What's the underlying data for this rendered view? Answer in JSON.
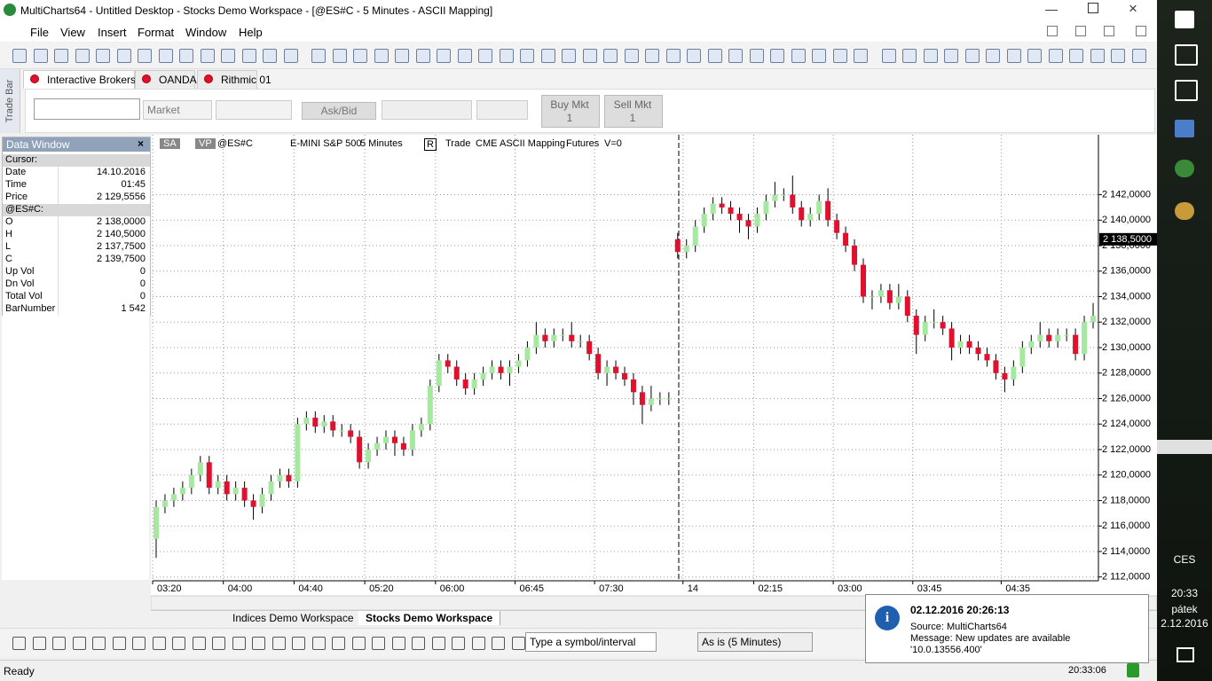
{
  "window": {
    "title": "MultiCharts64 - Untitled Desktop - Stocks Demo Workspace - [@ES#C - 5 Minutes - ASCII Mapping]"
  },
  "menu": [
    "File",
    "View",
    "Insert",
    "Format",
    "Window",
    "Help"
  ],
  "trade_bar": {
    "label": "Trade Bar",
    "brokers": [
      "Interactive Brokers",
      "OANDA",
      "Rithmic 01"
    ],
    "order_type": "Market",
    "price_mode": "Ask/Bid",
    "buy": {
      "label": "Buy Mkt",
      "qty": "1"
    },
    "sell": {
      "label": "Sell Mkt",
      "qty": "1"
    }
  },
  "data_window": {
    "title": "Data Window",
    "rows": [
      {
        "label": "Cursor:"
      },
      {
        "label": "Date",
        "value": "14.10.2016"
      },
      {
        "label": "Time",
        "value": "01:45"
      },
      {
        "label": "Price",
        "value": "2 129,5556"
      },
      {
        "label": "@ES#C:"
      },
      {
        "label": "O",
        "value": "2 138,0000"
      },
      {
        "label": "H",
        "value": "2 140,5000"
      },
      {
        "label": "L",
        "value": "2 137,7500"
      },
      {
        "label": "C",
        "value": "2 139,7500"
      },
      {
        "label": "Up Vol",
        "value": "0"
      },
      {
        "label": "Dn Vol",
        "value": "0"
      },
      {
        "label": "Total Vol",
        "value": "0"
      },
      {
        "label": "BarNumber",
        "value": "1 542"
      }
    ]
  },
  "chart_header": [
    "SA",
    "VP",
    "@ES#C",
    "E-MINI S&P 500",
    "5 Minutes",
    "R",
    "Trade",
    "CME",
    "ASCII Mapping",
    "Futures",
    "V=0"
  ],
  "chart": {
    "type": "candlestick",
    "up_color": "#a6e8a0",
    "down_color": "#e0102f",
    "grid": true,
    "categories": [
      "03:20",
      null,
      null,
      null,
      null,
      null,
      null,
      null,
      "04:00",
      null,
      null,
      null,
      null,
      null,
      null,
      null,
      "04:40",
      null,
      null,
      null,
      null,
      null,
      null,
      null,
      "05:20",
      null,
      null,
      null,
      null,
      null,
      null,
      null,
      "06:00",
      null,
      null,
      null,
      null,
      null,
      null,
      null,
      null,
      "06:45",
      null,
      null,
      null,
      null,
      null,
      null,
      null,
      null,
      "07:30",
      null,
      null,
      null,
      null,
      null,
      null,
      null,
      null,
      null,
      "14",
      null,
      null,
      null,
      null,
      null,
      null,
      null,
      "02:15",
      null,
      null,
      null,
      null,
      null,
      null,
      null,
      null,
      "03:00",
      null,
      null,
      null,
      null,
      null,
      null,
      null,
      null,
      "03:45",
      null,
      null,
      null,
      null,
      null,
      null,
      null,
      null,
      null,
      "04:35",
      null,
      null,
      null,
      null,
      null,
      null,
      null,
      null,
      null,
      null
    ],
    "open": [
      2115.0,
      2117.5,
      2118.0,
      2118.5,
      2119.0,
      2120.0,
      2121.0,
      2119.0,
      2119.5,
      2118.5,
      2119.0,
      2118.0,
      2117.5,
      2118.5,
      2119.5,
      2120.0,
      2119.5,
      2124.0,
      2124.5,
      2123.8,
      2124.2,
      2123.5,
      2123.5,
      2123.0,
      2121.0,
      2122.0,
      2122.5,
      2123.0,
      2122.5,
      2122.0,
      2123.5,
      2124.0,
      2127.0,
      2129.0,
      2128.5,
      2127.5,
      2126.8,
      2127.5,
      2128.0,
      2128.5,
      2128.0,
      2128.5,
      2129.0,
      2130.0,
      2131.0,
      2130.5,
      2131.0,
      2131.0,
      2130.5,
      2130.5,
      2129.5,
      2128.0,
      2128.5,
      2128.0,
      2127.5,
      2126.5,
      2125.5,
      2126.0,
      2126.0,
      2138.5,
      2137.5,
      2138.0,
      2139.5,
      2140.5,
      2141.3,
      2141.0,
      2140.5,
      2140.0,
      2139.5,
      2140.5,
      2141.5,
      2142.0,
      2142.0,
      2141.0,
      2140.0,
      2140.5,
      2141.5,
      2140.0,
      2139.0,
      2138.0,
      2136.5,
      2134.0,
      2134.0,
      2134.5,
      2133.5,
      2134.0,
      2132.5,
      2131.0,
      2132.0,
      2132.0,
      2131.5,
      2130.0,
      2130.5,
      2130.0,
      2129.5,
      2129.0,
      2128.0,
      2127.5,
      2128.5,
      2130.0,
      2130.5,
      2131.0,
      2130.5,
      2131.0,
      2131.0,
      2129.5,
      2132.0
    ],
    "high": [
      2118.0,
      2118.5,
      2119.0,
      2119.5,
      2120.5,
      2121.5,
      2121.5,
      2120.0,
      2120.0,
      2119.5,
      2119.5,
      2118.5,
      2119.0,
      2120.0,
      2120.5,
      2120.5,
      2124.5,
      2125.0,
      2125.0,
      2124.7,
      2124.7,
      2124.0,
      2124.0,
      2123.5,
      2122.5,
      2123.0,
      2123.5,
      2123.5,
      2123.0,
      2124.0,
      2124.5,
      2127.5,
      2129.5,
      2129.5,
      2129.0,
      2128.0,
      2128.0,
      2128.5,
      2129.0,
      2129.0,
      2129.0,
      2129.5,
      2130.5,
      2132.0,
      2131.5,
      2131.5,
      2131.5,
      2132.0,
      2131.0,
      2131.0,
      2130.0,
      2129.0,
      2129.0,
      2128.5,
      2128.0,
      2127.0,
      2127.0,
      2126.5,
      2126.5,
      2139.0,
      2138.5,
      2140.0,
      2141.0,
      2141.8,
      2141.8,
      2141.5,
      2141.0,
      2140.5,
      2141.0,
      2142.0,
      2143.0,
      2142.5,
      2143.5,
      2141.5,
      2141.0,
      2142.0,
      2142.5,
      2140.5,
      2139.5,
      2138.5,
      2137.0,
      2134.5,
      2135.0,
      2135.0,
      2135.0,
      2134.5,
      2133.0,
      2132.5,
      2133.0,
      2132.5,
      2132.0,
      2131.0,
      2131.0,
      2130.5,
      2130.0,
      2129.5,
      2128.5,
      2129.0,
      2130.5,
      2131.0,
      2132.0,
      2131.5,
      2131.5,
      2131.5,
      2131.5,
      2132.5,
      2133.5
    ],
    "low": [
      2113.5,
      2117.0,
      2117.5,
      2118.0,
      2118.5,
      2119.5,
      2118.5,
      2118.5,
      2118.0,
      2118.0,
      2117.5,
      2116.5,
      2117.0,
      2118.0,
      2119.0,
      2119.0,
      2119.0,
      2123.5,
      2123.3,
      2123.3,
      2123.0,
      2123.0,
      2122.5,
      2120.5,
      2120.5,
      2121.5,
      2122.0,
      2121.5,
      2121.5,
      2121.5,
      2123.0,
      2123.5,
      2126.5,
      2128.0,
      2127.0,
      2126.3,
      2126.3,
      2127.0,
      2127.5,
      2127.5,
      2127.0,
      2128.0,
      2128.5,
      2129.5,
      2130.0,
      2130.0,
      2130.5,
      2130.0,
      2130.0,
      2129.0,
      2127.5,
      2127.0,
      2127.5,
      2127.0,
      2125.5,
      2124.0,
      2125.0,
      2125.5,
      2125.5,
      2137.0,
      2137.0,
      2137.5,
      2139.0,
      2140.0,
      2140.5,
      2140.0,
      2139.0,
      2138.5,
      2139.0,
      2140.0,
      2141.0,
      2141.5,
      2140.5,
      2139.5,
      2139.5,
      2140.0,
      2139.5,
      2138.5,
      2137.5,
      2136.0,
      2133.5,
      2133.0,
      2133.5,
      2133.0,
      2133.0,
      2132.0,
      2129.5,
      2130.5,
      2131.5,
      2131.0,
      2129.0,
      2129.5,
      2129.5,
      2129.0,
      2128.5,
      2127.5,
      2126.5,
      2127.0,
      2128.0,
      2129.5,
      2130.0,
      2130.0,
      2130.0,
      2130.5,
      2129.0,
      2129.0,
      2131.5
    ],
    "close": [
      2117.5,
      2118.0,
      2118.5,
      2119.0,
      2120.0,
      2121.0,
      2119.0,
      2119.5,
      2118.5,
      2119.0,
      2118.0,
      2117.5,
      2118.5,
      2119.5,
      2120.0,
      2119.5,
      2124.0,
      2124.5,
      2123.8,
      2124.2,
      2123.5,
      2123.5,
      2123.0,
      2121.0,
      2122.0,
      2122.5,
      2123.0,
      2122.5,
      2122.0,
      2123.5,
      2124.0,
      2127.0,
      2129.0,
      2128.5,
      2127.5,
      2126.8,
      2127.5,
      2128.0,
      2128.5,
      2128.0,
      2128.5,
      2129.0,
      2130.0,
      2131.0,
      2130.5,
      2131.0,
      2131.0,
      2130.5,
      2130.5,
      2129.5,
      2128.0,
      2128.5,
      2128.0,
      2127.5,
      2126.5,
      2125.5,
      2126.0,
      2126.0,
      2126.0,
      2137.5,
      2138.0,
      2139.5,
      2140.5,
      2141.3,
      2141.0,
      2140.5,
      2140.0,
      2139.5,
      2140.5,
      2141.5,
      2142.0,
      2142.0,
      2141.0,
      2140.0,
      2140.5,
      2141.5,
      2140.0,
      2139.0,
      2138.0,
      2136.5,
      2134.0,
      2134.0,
      2134.5,
      2133.5,
      2134.0,
      2132.5,
      2131.0,
      2132.0,
      2132.0,
      2131.5,
      2130.0,
      2130.5,
      2130.0,
      2129.5,
      2129.0,
      2128.0,
      2127.5,
      2128.5,
      2130.0,
      2130.5,
      2131.0,
      2130.5,
      2131.0,
      2131.0,
      2129.5,
      2132.0,
      2132.5
    ],
    "ylim": [
      2111.7,
      2146.7
    ],
    "yticks": [
      {
        "value": 2112,
        "label": "2 112,0000"
      },
      {
        "value": 2114,
        "label": "2 114,0000"
      },
      {
        "value": 2116,
        "label": "2 116,0000"
      },
      {
        "value": 2118,
        "label": "2 118,0000"
      },
      {
        "value": 2120,
        "label": "2 120,0000"
      },
      {
        "value": 2122,
        "label": "2 122,0000"
      },
      {
        "value": 2124,
        "label": "2 124,0000"
      },
      {
        "value": 2126,
        "label": "2 126,0000"
      },
      {
        "value": 2128,
        "label": "2 128,0000"
      },
      {
        "value": 2130,
        "label": "2 130,0000"
      },
      {
        "value": 2132,
        "label": "2 132,0000"
      },
      {
        "value": 2134,
        "label": "2 134,0000"
      },
      {
        "value": 2136,
        "label": "2 136,0000"
      },
      {
        "value": 2138,
        "label": "2 138,0000"
      },
      {
        "value": 2140,
        "label": "2 140,0000"
      },
      {
        "value": 2142,
        "label": "2 142,0000"
      }
    ],
    "last_price": {
      "value": 2138.5,
      "label": "2 138,5000"
    }
  },
  "tabs": [
    "Indices Demo Workspace",
    "Stocks Demo Workspace"
  ],
  "drawing_bar": {
    "symbol_input": "Type a symbol/interval",
    "resolution": "As is (5 Minutes)"
  },
  "status": {
    "text": "Ready",
    "time": "20:33:06"
  },
  "notification": {
    "title": "02.12.2016 20:26:13",
    "source": "Source: MultiCharts64",
    "message": "Message: New updates are available",
    "version": "'10.0.13556.400'"
  },
  "taskbar": {
    "lang": "CES",
    "time": "20:33",
    "day": "pátek",
    "date": "2.12.2016"
  }
}
